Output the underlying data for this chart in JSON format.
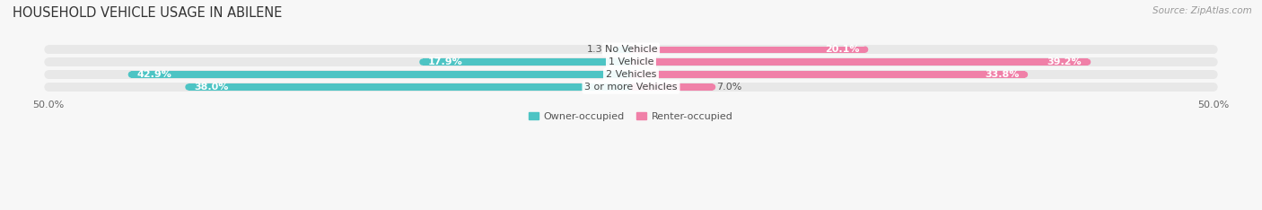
{
  "title": "HOUSEHOLD VEHICLE USAGE IN ABILENE",
  "source": "Source: ZipAtlas.com",
  "categories": [
    "No Vehicle",
    "1 Vehicle",
    "2 Vehicles",
    "3 or more Vehicles"
  ],
  "owner_values": [
    1.3,
    17.9,
    42.9,
    38.0
  ],
  "renter_values": [
    20.1,
    39.2,
    33.8,
    7.0
  ],
  "owner_color": "#4dc4c4",
  "renter_color": "#f080a8",
  "renter_color_light": "#f5b0c8",
  "bar_bg_color": "#e8e8e8",
  "bar_bg_border_color": "#d8d8d8",
  "xlim": [
    -50,
    50
  ],
  "legend_owner": "Owner-occupied",
  "legend_renter": "Renter-occupied",
  "title_fontsize": 10.5,
  "source_fontsize": 7.5,
  "label_fontsize": 8,
  "category_fontsize": 8,
  "axis_fontsize": 8,
  "background_color": "#f7f7f7"
}
